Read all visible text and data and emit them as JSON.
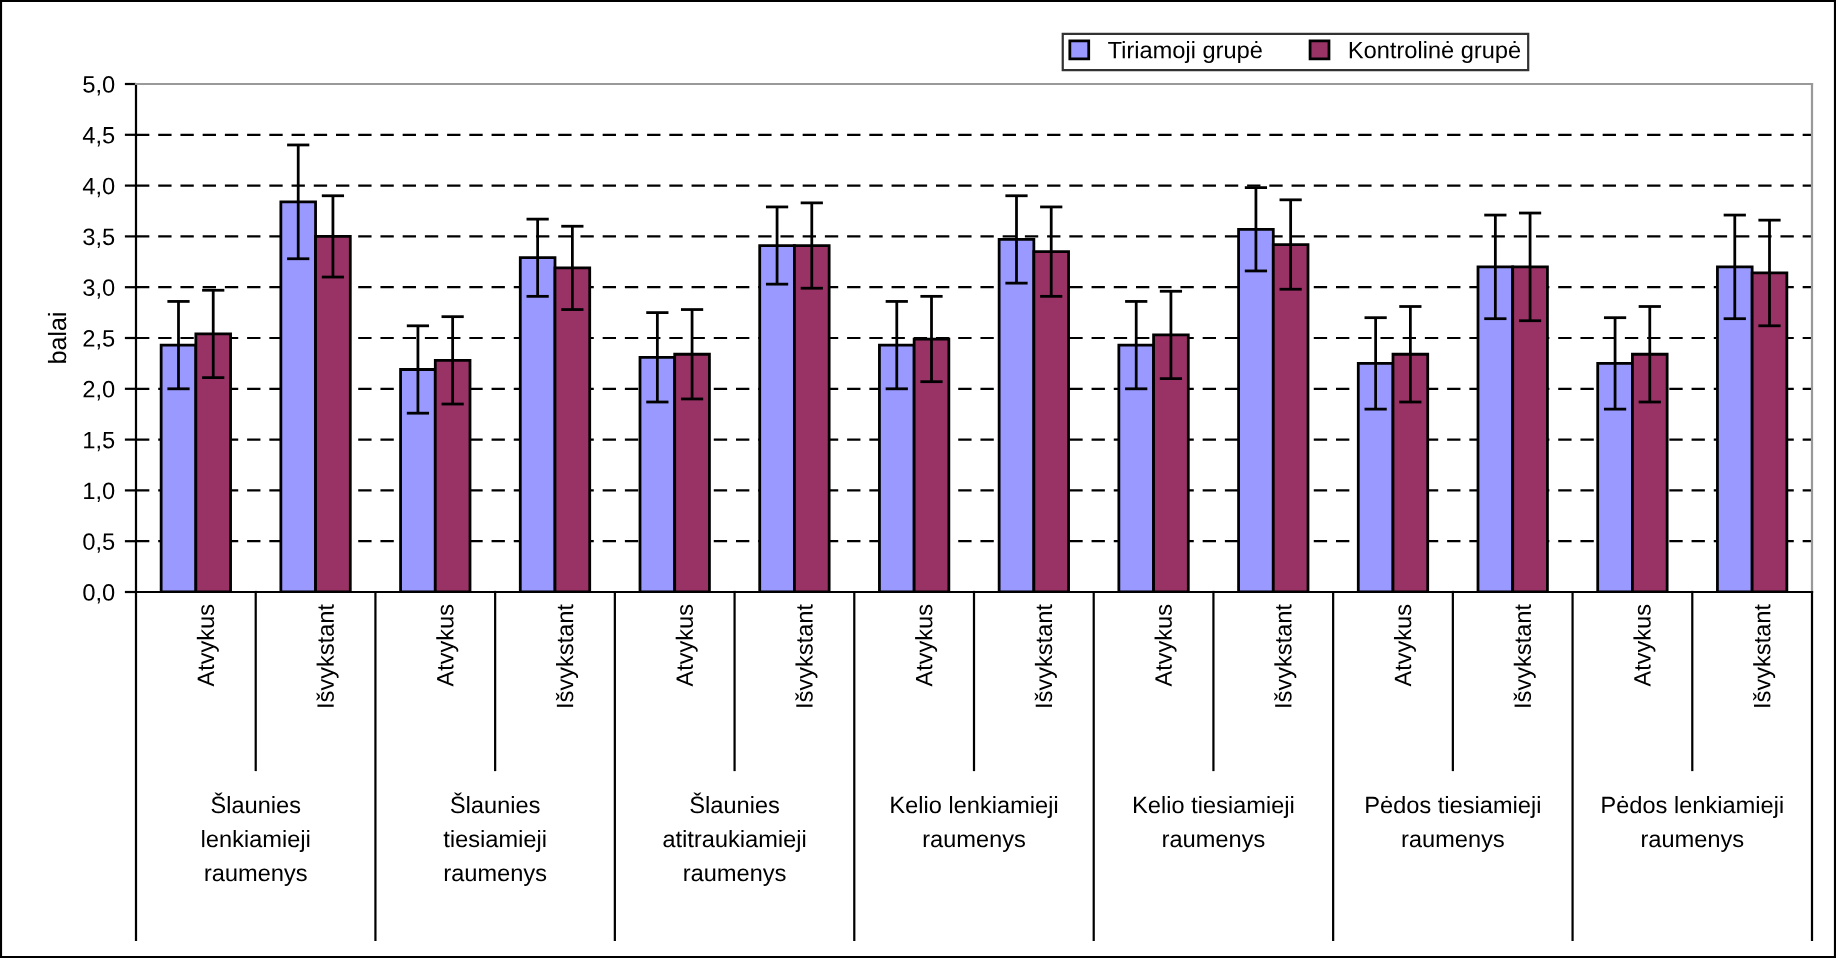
{
  "chart_data": {
    "type": "bar",
    "ylabel": "balai",
    "categories": [
      "Atvykus",
      "Išvykstant",
      "Atvykus",
      "Išvykstant",
      "Atvykus",
      "Išvykstant",
      "Atvykus",
      "Išvykstant",
      "Atvykus",
      "Išvykstant",
      "Atvykus",
      "Išvykstant",
      "Atvykus",
      "Išvykstant"
    ],
    "series": [
      {
        "name": "Tiriamoji grupė",
        "color": "#9999ff",
        "values": [
          2.43,
          3.84,
          2.19,
          3.29,
          2.31,
          3.41,
          2.43,
          3.47,
          2.43,
          3.57,
          2.25,
          3.2,
          2.25,
          3.2
        ],
        "errors": [
          0.43,
          0.56,
          0.43,
          0.38,
          0.44,
          0.38,
          0.43,
          0.43,
          0.43,
          0.41,
          0.45,
          0.51,
          0.45,
          0.51
        ]
      },
      {
        "name": "Kontrolinė grupė",
        "color": "#993366",
        "values": [
          2.54,
          3.5,
          2.28,
          3.19,
          2.34,
          3.41,
          2.49,
          3.35,
          2.53,
          3.42,
          2.34,
          3.2,
          2.34,
          3.14
        ],
        "errors": [
          0.43,
          0.4,
          0.43,
          0.41,
          0.44,
          0.42,
          0.42,
          0.44,
          0.43,
          0.44,
          0.47,
          0.53,
          0.47,
          0.52
        ]
      }
    ],
    "annotations": [
      "Šlaunies lenkiamieji raumenys",
      "Šlaunies tiesiamieji raumenys",
      "Šlaunies atitraukiamieji raumenys",
      "Kelio lenkiamieji raumenys",
      "Kelio tiesiamieji raumenys",
      "Pėdos tiesiamieji raumenys",
      "Pėdos lenkiamieji raumenys"
    ],
    "ylim": [
      0,
      5
    ],
    "yticks": [
      {
        "value": 0,
        "label": "0,0"
      },
      {
        "value": 0.5,
        "label": "0,5"
      },
      {
        "value": 1,
        "label": "1,0"
      },
      {
        "value": 1.5,
        "label": "1,5"
      },
      {
        "value": 2,
        "label": "2,0"
      },
      {
        "value": 2.5,
        "label": "2,5"
      },
      {
        "value": 3,
        "label": "3,0"
      },
      {
        "value": 3.5,
        "label": "3,5"
      },
      {
        "value": 4,
        "label": "4,0"
      },
      {
        "value": 4.5,
        "label": "4,5"
      },
      {
        "value": 5,
        "label": "5,0"
      }
    ],
    "grid": "y",
    "legend": "top right"
  }
}
